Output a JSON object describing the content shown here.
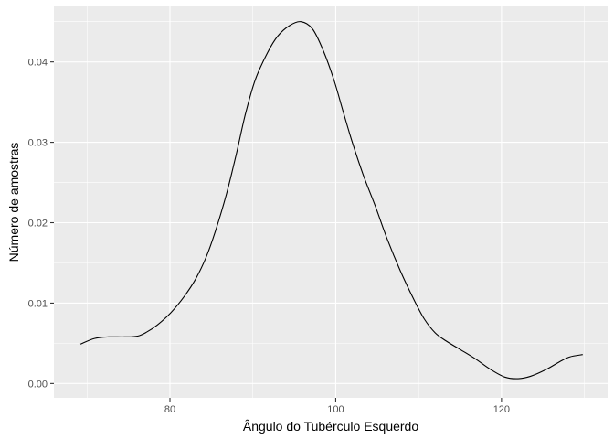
{
  "chart_data": {
    "type": "line",
    "title": "",
    "xlabel": "Ângulo do Tubérculo Esquerdo",
    "ylabel": "Número de amostras",
    "xlim": [
      66.0,
      132.8
    ],
    "ylim": [
      -0.00178,
      0.0469
    ],
    "x_ticks": [
      80,
      100,
      120
    ],
    "x_tick_labels": [
      "80",
      "100",
      "120"
    ],
    "y_ticks": [
      0.0,
      0.01,
      0.02,
      0.03,
      0.04
    ],
    "y_tick_labels": [
      "0.00",
      "0.01",
      "0.02",
      "0.03",
      "0.04"
    ],
    "grid": true,
    "legend": "none",
    "colors": {
      "panel": "#ebebeb",
      "grid": "#ffffff",
      "line": "#000000"
    },
    "series": [
      {
        "x": [
          69.2,
          70.9,
          72.6,
          74.5,
          76.1,
          77.2,
          78.5,
          80.1,
          81.7,
          83.1,
          84.4,
          85.5,
          86.8,
          88.0,
          89.1,
          90.3,
          91.8,
          93.0,
          94.4,
          95.8,
          97.2,
          98.5,
          99.8,
          100.9,
          102.0,
          103.3,
          104.8,
          106.2,
          107.8,
          109.4,
          110.7,
          112.0,
          113.3,
          114.9,
          116.8,
          118.6,
          120.4,
          122.0,
          123.5,
          125.3,
          127.0,
          128.2,
          129.8
        ],
        "y": [
          0.0049,
          0.0056,
          0.0058,
          0.0058,
          0.0059,
          0.0064,
          0.0073,
          0.0088,
          0.0108,
          0.013,
          0.0158,
          0.019,
          0.0235,
          0.0285,
          0.0335,
          0.0378,
          0.0412,
          0.0432,
          0.0445,
          0.045,
          0.0441,
          0.0414,
          0.0377,
          0.0338,
          0.03,
          0.026,
          0.022,
          0.018,
          0.014,
          0.0105,
          0.008,
          0.0063,
          0.0053,
          0.0043,
          0.0031,
          0.0018,
          0.0008,
          0.0006,
          0.0009,
          0.0017,
          0.0027,
          0.0033,
          0.0036
        ]
      }
    ]
  }
}
